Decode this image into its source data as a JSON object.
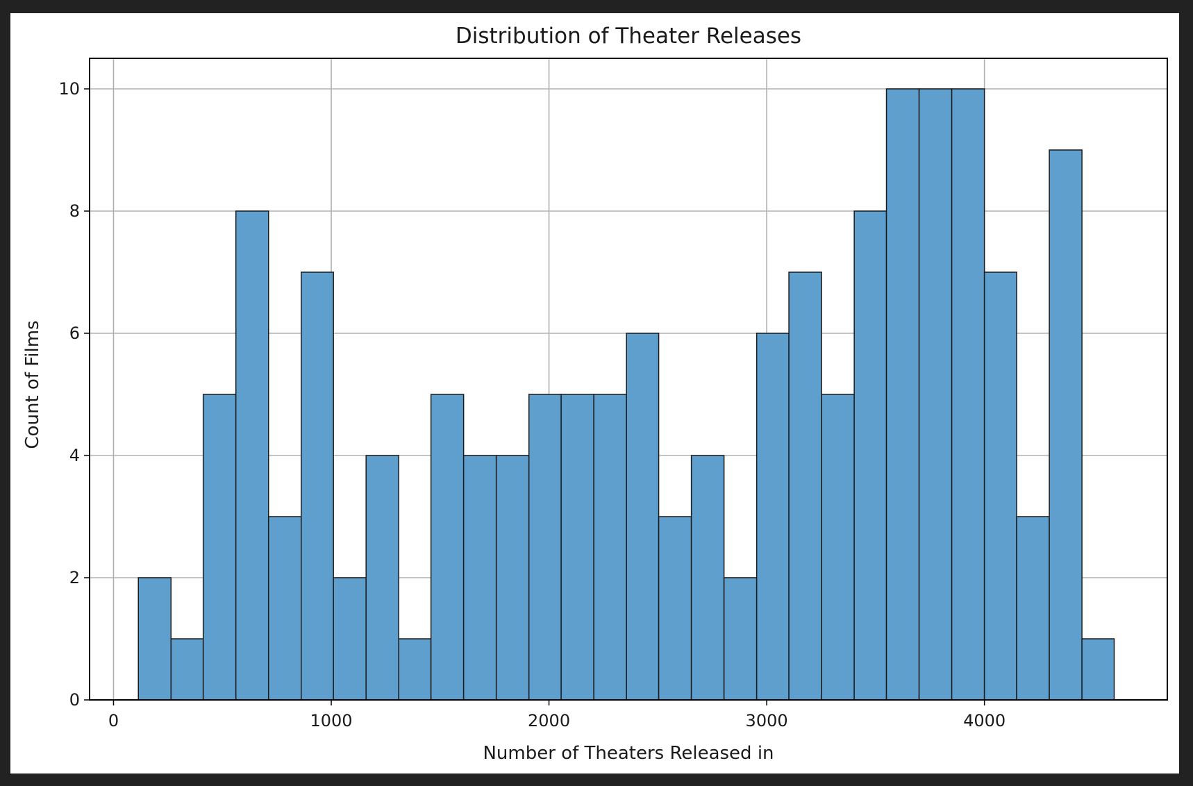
{
  "chart_data": {
    "type": "bar",
    "title": "Distribution of Theater Releases",
    "xlabel": "Number of Theaters Released in",
    "ylabel": "Count of Films",
    "xlim": [
      -110,
      4840
    ],
    "ylim": [
      0,
      10.5
    ],
    "xticks": [
      0,
      1000,
      2000,
      3000,
      4000
    ],
    "yticks": [
      0,
      2,
      4,
      6,
      8,
      10
    ],
    "grid": true,
    "bar_color": "#5f9fcd",
    "edge_color": "#1a1a1a",
    "bins": [
      {
        "x0": 114,
        "x1": 264,
        "count": 2
      },
      {
        "x0": 264,
        "x1": 412,
        "count": 1
      },
      {
        "x0": 412,
        "x1": 562,
        "count": 5
      },
      {
        "x0": 562,
        "x1": 712,
        "count": 8
      },
      {
        "x0": 712,
        "x1": 862,
        "count": 3
      },
      {
        "x0": 862,
        "x1": 1010,
        "count": 7
      },
      {
        "x0": 1010,
        "x1": 1160,
        "count": 2
      },
      {
        "x0": 1160,
        "x1": 1310,
        "count": 4
      },
      {
        "x0": 1310,
        "x1": 1458,
        "count": 1
      },
      {
        "x0": 1458,
        "x1": 1608,
        "count": 5
      },
      {
        "x0": 1608,
        "x1": 1758,
        "count": 4
      },
      {
        "x0": 1758,
        "x1": 1908,
        "count": 4
      },
      {
        "x0": 1908,
        "x1": 2056,
        "count": 5
      },
      {
        "x0": 2056,
        "x1": 2206,
        "count": 5
      },
      {
        "x0": 2206,
        "x1": 2356,
        "count": 5
      },
      {
        "x0": 2356,
        "x1": 2504,
        "count": 6
      },
      {
        "x0": 2504,
        "x1": 2654,
        "count": 3
      },
      {
        "x0": 2654,
        "x1": 2804,
        "count": 4
      },
      {
        "x0": 2804,
        "x1": 2954,
        "count": 2
      },
      {
        "x0": 2954,
        "x1": 3102,
        "count": 6
      },
      {
        "x0": 3102,
        "x1": 3252,
        "count": 7
      },
      {
        "x0": 3252,
        "x1": 3402,
        "count": 5
      },
      {
        "x0": 3402,
        "x1": 3550,
        "count": 8
      },
      {
        "x0": 3550,
        "x1": 3700,
        "count": 10
      },
      {
        "x0": 3700,
        "x1": 3850,
        "count": 10
      },
      {
        "x0": 3850,
        "x1": 4000,
        "count": 10
      },
      {
        "x0": 4000,
        "x1": 4148,
        "count": 7
      },
      {
        "x0": 4148,
        "x1": 4298,
        "count": 3
      },
      {
        "x0": 4298,
        "x1": 4448,
        "count": 9
      },
      {
        "x0": 4448,
        "x1": 4596,
        "count": 1
      }
    ]
  }
}
